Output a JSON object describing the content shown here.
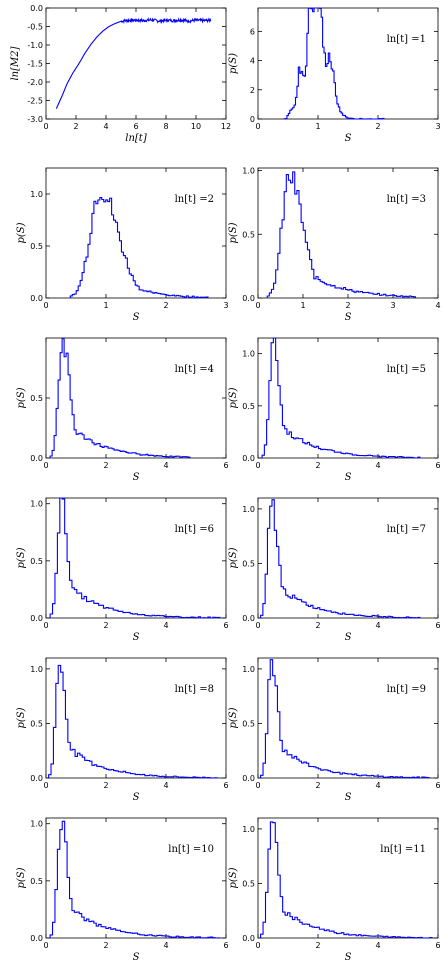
{
  "chart_data": [
    {
      "type": "line",
      "xlabel": "ln[t]",
      "ylabel": "ln[M2]",
      "xlim": [
        0,
        12
      ],
      "ylim": [
        -3.0,
        0.0
      ],
      "xticks": [
        "0",
        "2",
        "4",
        "6",
        "8",
        "10",
        "12"
      ],
      "yticks": [
        "0.0",
        "-0.5",
        "-1.0",
        "-1.5",
        "-2.0",
        "-2.5",
        "-3.0"
      ],
      "series": [
        {
          "color": "#0000ff",
          "x": [
            0.69,
            1.1,
            1.4,
            1.8,
            2.2,
            2.6,
            3.0,
            3.4,
            3.8,
            4.2,
            4.6,
            5.0,
            5.3,
            5.6,
            6.0,
            6.5,
            7.0,
            7.5,
            8.0,
            8.5,
            9.0,
            9.5,
            10.0,
            10.5,
            11.0
          ],
          "y": [
            -2.72,
            -2.35,
            -2.05,
            -1.75,
            -1.5,
            -1.22,
            -0.98,
            -0.78,
            -0.62,
            -0.5,
            -0.42,
            -0.36,
            -0.34,
            -0.33,
            -0.33,
            -0.34,
            -0.32,
            -0.35,
            -0.33,
            -0.34,
            -0.32,
            -0.35,
            -0.33,
            -0.34,
            -0.33
          ]
        }
      ]
    },
    {
      "type": "bar",
      "label": "ln[t] =1",
      "xlabel": "S",
      "ylabel": "p(S)",
      "xlim": [
        0,
        3
      ],
      "ylim": [
        0,
        7.6
      ],
      "xticks": [
        "0",
        "1",
        "2",
        "3"
      ],
      "yticks": [
        "0",
        "2",
        "4",
        "6"
      ],
      "peaks": [
        [
          0.55,
          0.6
        ],
        [
          0.62,
          0.3
        ],
        [
          0.7,
          3.2
        ],
        [
          0.78,
          0.6
        ],
        [
          0.86,
          6.9
        ],
        [
          0.94,
          2.5
        ],
        [
          1.0,
          7.6
        ],
        [
          1.07,
          0.6
        ],
        [
          1.14,
          1.7
        ],
        [
          1.2,
          2.8
        ],
        [
          1.28,
          0.6
        ],
        [
          1.4,
          0.2
        ]
      ],
      "width": 0.07,
      "xmax": 2.1,
      "tail": 0.25
    },
    {
      "type": "bar",
      "label": "ln[t] =2",
      "xlabel": "S",
      "ylabel": "p(S)",
      "xlim": [
        0,
        3
      ],
      "ylim": [
        0,
        1.25
      ],
      "xticks": [
        "0",
        "1",
        "2",
        "3"
      ],
      "yticks": [
        "0.0",
        "0.5",
        "1.0"
      ],
      "peaks": [
        [
          0.9,
          1.05
        ]
      ],
      "width": 0.3,
      "xmax": 2.7,
      "tail": 0.45
    },
    {
      "type": "bar",
      "label": "ln[t] =3",
      "xlabel": "S",
      "ylabel": "p(S)",
      "xlim": [
        0,
        4
      ],
      "ylim": [
        0,
        1.02
      ],
      "xticks": [
        "0",
        "1",
        "2",
        "3",
        "4"
      ],
      "yticks": [
        "0.0",
        "0.5",
        "1.0"
      ],
      "peaks": [
        [
          0.7,
          0.95
        ]
      ],
      "width": 0.3,
      "xmax": 3.5,
      "tail": 0.6
    },
    {
      "type": "bar",
      "label": "ln[t] =4",
      "xlabel": "S",
      "ylabel": "p(S)",
      "xlim": [
        0,
        6
      ],
      "ylim": [
        0,
        1.0
      ],
      "xticks": [
        "0",
        "2",
        "4",
        "6"
      ],
      "yticks": [
        "0.0",
        "0.5"
      ],
      "peaks": [
        [
          0.55,
          0.96
        ]
      ],
      "width": 0.25,
      "xmax": 4.8,
      "tail": 0.55
    },
    {
      "type": "bar",
      "label": "ln[t] =5",
      "xlabel": "S",
      "ylabel": "p(S)",
      "xlim": [
        0,
        6
      ],
      "ylim": [
        0,
        1.15
      ],
      "xticks": [
        "0",
        "2",
        "4",
        "6"
      ],
      "yticks": [
        "0.0",
        "0.5",
        "1.0"
      ],
      "peaks": [
        [
          0.5,
          1.12
        ]
      ],
      "width": 0.22,
      "xmax": 5.4,
      "tail": 0.55
    },
    {
      "type": "bar",
      "label": "ln[t] =6",
      "xlabel": "S",
      "ylabel": "p(S)",
      "xlim": [
        0,
        6
      ],
      "ylim": [
        0,
        1.05
      ],
      "xticks": [
        "0",
        "2",
        "4",
        "6"
      ],
      "yticks": [
        "0.0",
        "0.5",
        "1.0"
      ],
      "peaks": [
        [
          0.5,
          1.02
        ]
      ],
      "width": 0.22,
      "xmax": 5.8,
      "tail": 0.55
    },
    {
      "type": "bar",
      "label": "ln[t] =7",
      "xlabel": "S",
      "ylabel": "p(S)",
      "xlim": [
        0,
        6
      ],
      "ylim": [
        0,
        1.1
      ],
      "xticks": [
        "0",
        "2",
        "4",
        "6"
      ],
      "yticks": [
        "0.0",
        "0.5",
        "1.0"
      ],
      "peaks": [
        [
          0.45,
          1.05
        ]
      ],
      "width": 0.22,
      "xmax": 5.4,
      "tail": 0.55
    },
    {
      "type": "bar",
      "label": "ln[t] =8",
      "xlabel": "S",
      "ylabel": "p(S)",
      "xlim": [
        0,
        6
      ],
      "ylim": [
        0,
        1.1
      ],
      "xticks": [
        "0",
        "2",
        "4",
        "6"
      ],
      "yticks": [
        "0.0",
        "0.5",
        "1.0"
      ],
      "peaks": [
        [
          0.45,
          1.06
        ]
      ],
      "width": 0.22,
      "xmax": 5.7,
      "tail": 0.55
    },
    {
      "type": "bar",
      "label": "ln[t] =9",
      "xlabel": "S",
      "ylabel": "p(S)",
      "xlim": [
        0,
        6
      ],
      "ylim": [
        0,
        1.1
      ],
      "xticks": [
        "0",
        "2",
        "4",
        "6"
      ],
      "yticks": [
        "0.0",
        "0.5",
        "1.0"
      ],
      "peaks": [
        [
          0.45,
          1.08
        ]
      ],
      "width": 0.22,
      "xmax": 5.7,
      "tail": 0.55
    },
    {
      "type": "bar",
      "label": "ln[t] =10",
      "xlabel": "S",
      "ylabel": "p(S)",
      "xlim": [
        0,
        6
      ],
      "ylim": [
        0,
        1.05
      ],
      "xticks": [
        "0",
        "2",
        "4",
        "6"
      ],
      "yticks": [
        "0.0",
        "0.5",
        "1.0"
      ],
      "peaks": [
        [
          0.5,
          1.02
        ]
      ],
      "width": 0.22,
      "xmax": 5.8,
      "tail": 0.55
    },
    {
      "type": "bar",
      "label": "ln[t] =11",
      "xlabel": "S",
      "ylabel": "p(S)",
      "xlim": [
        0,
        6
      ],
      "ylim": [
        0,
        1.1
      ],
      "xticks": [
        "0",
        "2",
        "4",
        "6"
      ],
      "yticks": [
        "0.0",
        "0.5",
        "1.0"
      ],
      "peaks": [
        [
          0.45,
          1.06
        ]
      ],
      "width": 0.22,
      "xmax": 5.8,
      "tail": 0.55
    }
  ]
}
